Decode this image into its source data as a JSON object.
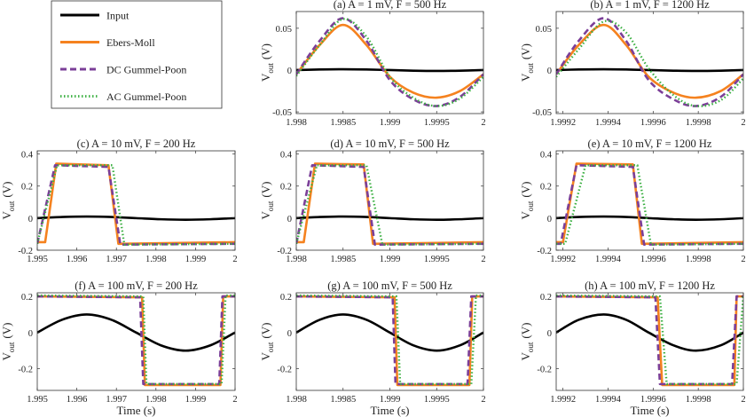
{
  "colors": {
    "Input": "#000000",
    "Ebers-Moll": "#f5821f",
    "DC Gummel-Poon": "#7b3f98",
    "AC Gummel-Poon": "#3cb043"
  },
  "legend": [
    "Input",
    "Ebers-Moll",
    "DC Gummel-Poon",
    "AC Gummel-Poon"
  ],
  "ylabel_main": "V",
  "ylabel_sub": "out",
  "ylabel_unit": "(V)",
  "xlabel": "Time (s)",
  "chart_data": [
    {
      "type": "line",
      "title": "(a) A = 1 mV, F = 500 Hz",
      "xlim": [
        1.998,
        2
      ],
      "ylim": [
        -0.052,
        0.07
      ],
      "xticks": [
        1.998,
        1.9985,
        1.999,
        1.9995,
        2
      ],
      "xticklabels": [
        "1.998",
        "1.9985",
        "1.999",
        "1.9995",
        "2"
      ],
      "yticks": [
        -0.05,
        0,
        0.05
      ],
      "yticklabels": [
        "-0.05",
        "0",
        "0.05"
      ],
      "series": [
        {
          "name": "Input",
          "smooth": true,
          "x": [
            1.998,
            1.99825,
            1.9985,
            1.99875,
            1.999,
            1.99925,
            1.9995,
            1.99975,
            2
          ],
          "y": [
            0,
            0.0007,
            0.001,
            0.0007,
            0,
            -0.0007,
            -0.001,
            -0.0007,
            0
          ]
        },
        {
          "name": "Ebers-Moll",
          "smooth": true,
          "x": [
            1.998,
            1.99825,
            1.9985,
            1.99875,
            1.999,
            1.99925,
            1.9995,
            1.99975,
            2
          ],
          "y": [
            -0.005,
            0.03,
            0.054,
            0.03,
            -0.008,
            -0.027,
            -0.033,
            -0.025,
            -0.005
          ]
        },
        {
          "name": "DC Gummel-Poon",
          "smooth": true,
          "x": [
            1.998,
            1.99825,
            1.9985,
            1.99875,
            1.999,
            1.99925,
            1.9995,
            1.99975,
            2
          ],
          "y": [
            -0.005,
            0.035,
            0.062,
            0.035,
            -0.012,
            -0.035,
            -0.043,
            -0.032,
            -0.005
          ]
        },
        {
          "name": "AC Gummel-Poon",
          "smooth": true,
          "x": [
            1.998,
            1.99825,
            1.9985,
            1.99875,
            1.999,
            1.99925,
            1.9995,
            1.99975,
            2
          ],
          "y": [
            -0.007,
            0.03,
            0.061,
            0.04,
            -0.008,
            -0.033,
            -0.043,
            -0.034,
            -0.008
          ]
        }
      ]
    },
    {
      "type": "line",
      "title": "(b) A = 1 mV, F = 1200 Hz",
      "xlim": [
        1.99917,
        2
      ],
      "ylim": [
        -0.052,
        0.07
      ],
      "xticks": [
        1.9992,
        1.9994,
        1.9996,
        1.9998,
        2
      ],
      "xticklabels": [
        "1.9992",
        "1.9994",
        "1.9996",
        "1.9998",
        "2"
      ],
      "yticks": [
        -0.05,
        0,
        0.05
      ],
      "yticklabels": [
        "-0.05",
        "0",
        "0.05"
      ],
      "series": [
        {
          "name": "Input",
          "smooth": true,
          "x": [
            1.99917,
            1.99927,
            1.99938,
            1.99948,
            1.99958,
            1.99969,
            1.99979,
            1.9999,
            2
          ],
          "y": [
            0,
            0.0007,
            0.001,
            0.0007,
            0,
            -0.0007,
            -0.001,
            -0.0007,
            0
          ]
        },
        {
          "name": "Ebers-Moll",
          "smooth": true,
          "x": [
            1.99917,
            1.99927,
            1.99938,
            1.99948,
            1.99958,
            1.99969,
            1.99979,
            1.9999,
            2
          ],
          "y": [
            -0.005,
            0.03,
            0.054,
            0.03,
            -0.008,
            -0.027,
            -0.033,
            -0.025,
            -0.005
          ]
        },
        {
          "name": "DC Gummel-Poon",
          "smooth": true,
          "x": [
            1.99917,
            1.99927,
            1.99938,
            1.99948,
            1.99958,
            1.99969,
            1.99979,
            1.9999,
            2
          ],
          "y": [
            -0.005,
            0.035,
            0.062,
            0.035,
            -0.012,
            -0.035,
            -0.043,
            -0.032,
            -0.005
          ]
        },
        {
          "name": "AC Gummel-Poon",
          "smooth": true,
          "x": [
            1.99917,
            1.99927,
            1.99938,
            1.99948,
            1.99958,
            1.99969,
            1.99979,
            1.9999,
            2
          ],
          "y": [
            -0.008,
            0.025,
            0.058,
            0.045,
            0.002,
            -0.03,
            -0.043,
            -0.036,
            -0.01
          ]
        }
      ]
    },
    {
      "type": "line",
      "title": "(c) A = 10 mV, F = 200 Hz",
      "xlim": [
        1.995,
        2
      ],
      "ylim": [
        -0.2,
        0.42
      ],
      "xticks": [
        1.995,
        1.996,
        1.997,
        1.998,
        1.999,
        2
      ],
      "xticklabels": [
        "1.995",
        "1.996",
        "1.997",
        "1.998",
        "1.999",
        "2"
      ],
      "yticks": [
        -0.2,
        0,
        0.2,
        0.4
      ],
      "yticklabels": [
        "-0.2",
        "0",
        "0.2",
        "0.4"
      ],
      "series": [
        {
          "name": "Input",
          "smooth": true,
          "x": [
            1.995,
            1.995625,
            1.99625,
            1.996875,
            1.9975,
            1.998125,
            1.99875,
            1.999375,
            2
          ],
          "y": [
            0,
            0.007,
            0.01,
            0.007,
            0,
            -0.007,
            -0.01,
            -0.007,
            0
          ]
        },
        {
          "name": "Ebers-Moll",
          "smooth": false,
          "x": [
            1.995,
            1.9952,
            1.99548,
            1.9968,
            1.99705,
            2
          ],
          "y": [
            -0.15,
            -0.15,
            0.34,
            0.33,
            -0.16,
            -0.15
          ]
        },
        {
          "name": "DC Gummel-Poon",
          "smooth": false,
          "x": [
            1.995,
            1.99545,
            1.9968,
            1.9971,
            2
          ],
          "y": [
            -0.16,
            0.33,
            0.32,
            -0.165,
            -0.16
          ]
        },
        {
          "name": "AC Gummel-Poon",
          "smooth": false,
          "x": [
            1.995,
            1.9955,
            1.9969,
            1.9972,
            2
          ],
          "y": [
            -0.16,
            0.33,
            0.33,
            -0.165,
            -0.16
          ]
        }
      ]
    },
    {
      "type": "line",
      "title": "(d) A = 10 mV, F = 500 Hz",
      "xlim": [
        1.998,
        2
      ],
      "ylim": [
        -0.2,
        0.42
      ],
      "xticks": [
        1.998,
        1.9985,
        1.999,
        1.9995,
        2
      ],
      "xticklabels": [
        "1.998",
        "1.9985",
        "1.999",
        "1.9995",
        "2"
      ],
      "yticks": [
        -0.2,
        0,
        0.2,
        0.4
      ],
      "yticklabels": [
        "-0.2",
        "0",
        "0.2",
        "0.4"
      ],
      "series": [
        {
          "name": "Input",
          "smooth": true,
          "x": [
            1.998,
            1.99825,
            1.9985,
            1.99875,
            1.999,
            1.99925,
            1.9995,
            1.99975,
            2
          ],
          "y": [
            0,
            0.007,
            0.01,
            0.007,
            0,
            -0.007,
            -0.01,
            -0.007,
            0
          ]
        },
        {
          "name": "Ebers-Moll",
          "smooth": false,
          "x": [
            1.998,
            1.99808,
            1.9982,
            1.99872,
            1.99882,
            2
          ],
          "y": [
            -0.15,
            -0.15,
            0.34,
            0.335,
            -0.16,
            -0.15
          ]
        },
        {
          "name": "DC Gummel-Poon",
          "smooth": false,
          "x": [
            1.998,
            1.99817,
            1.99872,
            1.99884,
            2
          ],
          "y": [
            -0.16,
            0.33,
            0.32,
            -0.165,
            -0.16
          ]
        },
        {
          "name": "AC Gummel-Poon",
          "smooth": false,
          "x": [
            1.998,
            1.99822,
            1.99875,
            1.99892,
            2
          ],
          "y": [
            -0.16,
            0.33,
            0.33,
            -0.165,
            -0.16
          ]
        }
      ]
    },
    {
      "type": "line",
      "title": "(e) A = 10 mV, F = 1200 Hz",
      "xlim": [
        1.99917,
        2
      ],
      "ylim": [
        -0.2,
        0.42
      ],
      "xticks": [
        1.9992,
        1.9994,
        1.9996,
        1.9998,
        2
      ],
      "xticklabels": [
        "1.9992",
        "1.9994",
        "1.9996",
        "1.9998",
        "2"
      ],
      "yticks": [
        -0.2,
        0,
        0.2,
        0.4
      ],
      "yticklabels": [
        "-0.2",
        "0",
        "0.2",
        "0.4"
      ],
      "series": [
        {
          "name": "Input",
          "smooth": true,
          "x": [
            1.99917,
            1.99927,
            1.99938,
            1.99948,
            1.99958,
            1.99969,
            1.99979,
            1.9999,
            2
          ],
          "y": [
            0,
            0.007,
            0.01,
            0.007,
            0,
            -0.007,
            -0.01,
            -0.007,
            0
          ]
        },
        {
          "name": "Ebers-Moll",
          "smooth": false,
          "x": [
            1.99917,
            1.9992,
            1.99926,
            1.99951,
            1.99955,
            2
          ],
          "y": [
            -0.15,
            -0.15,
            0.34,
            0.335,
            -0.16,
            -0.15
          ]
        },
        {
          "name": "DC Gummel-Poon",
          "smooth": false,
          "x": [
            1.99917,
            1.99919,
            1.99926,
            1.99951,
            1.99956,
            2
          ],
          "y": [
            -0.16,
            -0.16,
            0.33,
            0.32,
            -0.165,
            -0.16
          ]
        },
        {
          "name": "AC Gummel-Poon",
          "smooth": false,
          "x": [
            1.99917,
            1.99921,
            1.9993,
            1.99953,
            1.99959,
            2
          ],
          "y": [
            -0.16,
            -0.16,
            0.33,
            0.33,
            -0.165,
            -0.16
          ]
        }
      ]
    },
    {
      "type": "line",
      "title": "(f) A = 100 mV, F = 200 Hz",
      "xlim": [
        1.995,
        2
      ],
      "ylim": [
        -0.32,
        0.22
      ],
      "xticks": [
        1.995,
        1.996,
        1.997,
        1.998,
        1.999,
        2
      ],
      "xticklabels": [
        "1.995",
        "1.996",
        "1.997",
        "1.998",
        "1.999",
        "2"
      ],
      "yticks": [
        -0.2,
        0,
        0.2
      ],
      "yticklabels": [
        "-0.2",
        "0",
        "0.2"
      ],
      "series": [
        {
          "name": "Input",
          "smooth": true,
          "x": [
            1.995,
            1.995625,
            1.99625,
            1.996875,
            1.9975,
            1.998125,
            1.99875,
            1.999375,
            2
          ],
          "y": [
            0,
            0.0707,
            0.1,
            0.0707,
            0,
            -0.0707,
            -0.1,
            -0.0707,
            0
          ]
        },
        {
          "name": "Ebers-Moll",
          "smooth": false,
          "x": [
            1.995,
            1.99765,
            1.99772,
            1.99963,
            1.9997,
            2
          ],
          "y": [
            0.2,
            0.195,
            -0.29,
            -0.29,
            0.2,
            0.2
          ]
        },
        {
          "name": "DC Gummel-Poon",
          "smooth": false,
          "x": [
            1.995,
            1.9976,
            1.99768,
            1.9996,
            1.99968,
            2
          ],
          "y": [
            0.2,
            0.195,
            -0.285,
            -0.285,
            0.2,
            0.2
          ]
        },
        {
          "name": "AC Gummel-Poon",
          "smooth": false,
          "x": [
            1.995,
            1.99768,
            1.99776,
            1.99966,
            1.99976,
            2
          ],
          "y": [
            0.205,
            0.2,
            -0.285,
            -0.285,
            0.205,
            0.205
          ]
        }
      ]
    },
    {
      "type": "line",
      "title": "(g) A = 100 mV, F = 500 Hz",
      "xlim": [
        1.998,
        2
      ],
      "ylim": [
        -0.32,
        0.22
      ],
      "xticks": [
        1.998,
        1.9985,
        1.999,
        1.9995,
        2
      ],
      "xticklabels": [
        "1.998",
        "1.9985",
        "1.999",
        "1.9995",
        "2"
      ],
      "yticks": [
        -0.2,
        0,
        0.2
      ],
      "yticklabels": [
        "-0.2",
        "0",
        "0.2"
      ],
      "series": [
        {
          "name": "Input",
          "smooth": true,
          "x": [
            1.998,
            1.99825,
            1.9985,
            1.99875,
            1.999,
            1.99925,
            1.9995,
            1.99975,
            2
          ],
          "y": [
            0,
            0.0707,
            0.1,
            0.0707,
            0,
            -0.0707,
            -0.1,
            -0.0707,
            0
          ]
        },
        {
          "name": "Ebers-Moll",
          "smooth": false,
          "x": [
            1.998,
            1.99905,
            1.99908,
            1.99985,
            1.99988,
            2
          ],
          "y": [
            0.2,
            0.195,
            -0.29,
            -0.29,
            0.2,
            0.2
          ]
        },
        {
          "name": "DC Gummel-Poon",
          "smooth": false,
          "x": [
            1.998,
            1.99903,
            1.99906,
            1.99983,
            1.99987,
            2
          ],
          "y": [
            0.2,
            0.195,
            -0.285,
            -0.285,
            0.2,
            0.2
          ]
        },
        {
          "name": "AC Gummel-Poon",
          "smooth": false,
          "x": [
            1.998,
            1.99907,
            1.99911,
            1.99987,
            1.99992,
            2
          ],
          "y": [
            0.205,
            0.2,
            -0.285,
            -0.285,
            0.205,
            0.205
          ]
        }
      ]
    },
    {
      "type": "line",
      "title": "(h) A = 100 mV, F = 1200 Hz",
      "xlim": [
        1.99917,
        2
      ],
      "ylim": [
        -0.32,
        0.22
      ],
      "xticks": [
        1.9992,
        1.9994,
        1.9996,
        1.9998,
        2
      ],
      "xticklabels": [
        "1.9992",
        "1.9994",
        "1.9996",
        "1.9998",
        "2"
      ],
      "yticks": [
        -0.2,
        0,
        0.2
      ],
      "yticklabels": [
        "-0.2",
        "0",
        "0.2"
      ],
      "series": [
        {
          "name": "Input",
          "smooth": true,
          "x": [
            1.99917,
            1.99927,
            1.99938,
            1.99948,
            1.99958,
            1.99969,
            1.99979,
            1.9999,
            2
          ],
          "y": [
            0,
            0.0707,
            0.1,
            0.0707,
            0,
            -0.0707,
            -0.1,
            -0.0707,
            0
          ]
        },
        {
          "name": "Ebers-Moll",
          "smooth": false,
          "x": [
            1.99917,
            1.99962,
            1.99964,
            1.99996,
            1.99997,
            2
          ],
          "y": [
            0.2,
            0.195,
            -0.29,
            -0.29,
            0.2,
            0.2
          ]
        },
        {
          "name": "DC Gummel-Poon",
          "smooth": false,
          "x": [
            1.99917,
            1.99961,
            1.99963,
            1.99995,
            1.99997,
            2
          ],
          "y": [
            0.2,
            0.195,
            -0.285,
            -0.285,
            0.2,
            0.2
          ]
        },
        {
          "name": "AC Gummel-Poon",
          "smooth": false,
          "x": [
            1.99917,
            1.99963,
            1.99966,
            1.99997,
            2
          ],
          "y": [
            0.205,
            0.2,
            -0.285,
            -0.285,
            0.205
          ]
        }
      ]
    }
  ]
}
